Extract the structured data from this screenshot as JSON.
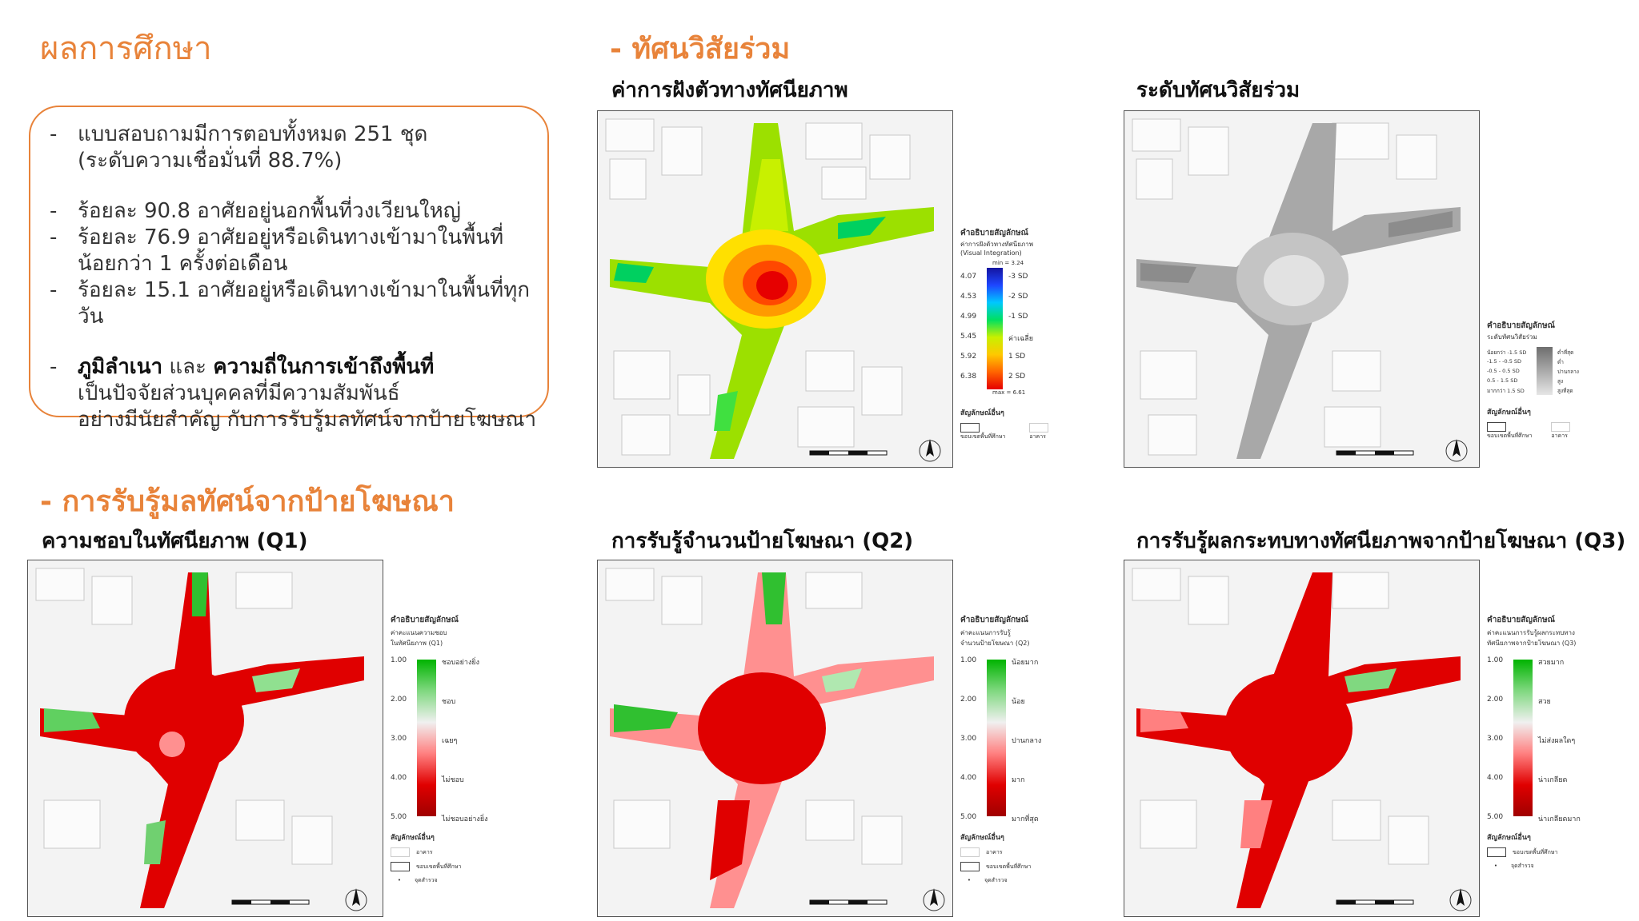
{
  "header": {
    "title": "ผลการศึกษา"
  },
  "summary": {
    "items": [
      {
        "lines": [
          "แบบสอบถามมีการตอบทั้งหมด 251 ชุด",
          "(ระดับความเชื่อมั่นที่ 88.7%)"
        ]
      },
      {
        "lines": [
          "ร้อยละ 90.8 อาศัยอยู่นอกพื้นที่วงเวียนใหญ่"
        ]
      },
      {
        "lines": [
          "ร้อยละ 76.9 อาศัยอยู่หรือเดินทางเข้ามาในพื้นที่",
          "น้อยกว่า 1 ครั้งต่อเดือน"
        ]
      },
      {
        "lines": [
          "ร้อยละ 15.1 อาศัยอยู่หรือเดินทางเข้ามาในพื้นที่ทุกวัน"
        ]
      }
    ],
    "final": {
      "bold1": "ภูมิลำเนา",
      "and": " และ ",
      "bold2": "ความถี่ในการเข้าถึงพื้นที่",
      "line2": "เป็นปัจจัยส่วนบุคคลที่มีความสัมพันธ์",
      "line3": "อย่างมีนัยสำคัญ กับการรับรู้มลทัศน์จากป้ายโฆษณา"
    }
  },
  "sections": {
    "visual": "- ทัศนวิสัยร่วม",
    "perception": "- การรับรู้มลทัศน์จากป้ายโฆษณา"
  },
  "maps": {
    "integration": {
      "title": "ค่าการฝังตัวทางทัศนียภาพ"
    },
    "covisibility": {
      "title": "ระดับทัศนวิสัยร่วม"
    },
    "q1": {
      "title": "ความชอบในทัศนียภาพ (Q1)"
    },
    "q2": {
      "title": "การรับรู้จำนวนป้ายโฆษณา (Q2)"
    },
    "q3": {
      "title": "การรับรู้ผลกระทบทางทัศนียภาพจากป้ายโฆษณา (Q3)"
    }
  },
  "legends": {
    "integration": {
      "head": "คำอธิบายสัญลักษณ์",
      "sub1": "ค่าการฝังตัวทางทัศนียภาพ",
      "sub2": "(Visual Integration)",
      "min": "min = 3.24",
      "max": "max = 6.61",
      "values": [
        "4.07",
        "4.53",
        "4.99",
        "5.45",
        "5.92",
        "6.38"
      ],
      "labels": [
        "-3 SD",
        "-2 SD",
        "-1 SD",
        "ค่าเฉลี่ย",
        "1 SD",
        "2 SD"
      ],
      "others": "สัญลักษณ์อื่นๆ",
      "boundary": "ขอบเขตพื้นที่ศึกษา",
      "building": "อาคาร",
      "colors": [
        "#1414a0",
        "#1e46ff",
        "#00c8ff",
        "#00e060",
        "#c8f000",
        "#ffc800",
        "#ff6400",
        "#e60000"
      ]
    },
    "covisibility": {
      "head": "คำอธิบายสัญลักษณ์",
      "sub1": "ระดับทัศนวิสัยร่วม",
      "ranges": [
        "น้อยกว่า -1.5 SD",
        "-1.5 - -0.5 SD",
        "-0.5 - 0.5 SD",
        "0.5 - 1.5 SD",
        "มากกว่า 1.5 SD"
      ],
      "labels": [
        "ต่ำที่สุด",
        "ต่ำ",
        "ปานกลาง",
        "สูง",
        "สูงที่สุด"
      ],
      "others": "สัญลักษณ์อื่นๆ",
      "boundary": "ขอบเขตพื้นที่ศึกษา",
      "building": "อาคาร",
      "colors": [
        "#6e6e6e",
        "#8c8c8c",
        "#aaaaaa",
        "#c8c8c8",
        "#e6e6e6"
      ]
    },
    "q1": {
      "head": "คำอธิบายสัญลักษณ์",
      "sub1": "ค่าคะแนนความชอบ",
      "sub2": "ในทัศนียภาพ (Q1)",
      "values": [
        "1.00",
        "2.00",
        "3.00",
        "4.00",
        "5.00"
      ],
      "labels": [
        "ชอบอย่างยิ่ง",
        "ชอบ",
        "เฉยๆ",
        "ไม่ชอบ",
        "ไม่ชอบอย่างยิ่ง"
      ]
    },
    "q2": {
      "head": "คำอธิบายสัญลักษณ์",
      "sub1": "ค่าคะแนนการรับรู้",
      "sub2": "จำนวนป้ายโฆษณา (Q2)",
      "values": [
        "1.00",
        "2.00",
        "3.00",
        "4.00",
        "5.00"
      ],
      "labels": [
        "น้อยมาก",
        "น้อย",
        "ปานกลาง",
        "มาก",
        "มากที่สุด"
      ]
    },
    "q3": {
      "head": "คำอธิบายสัญลักษณ์",
      "sub1": "ค่าคะแนนการรับรู้ผลกระทบทาง",
      "sub2": "ทัศนียภาพจากป้ายโฆษณา (Q3)",
      "values": [
        "1.00",
        "2.00",
        "3.00",
        "4.00",
        "5.00"
      ],
      "labels": [
        "สวยมาก",
        "สวย",
        "ไม่ส่งผลใดๆ",
        "น่าเกลียด",
        "น่าเกลียดมาก"
      ]
    },
    "survey_common": {
      "ticks": [
        ".25",
        ".50",
        ".75"
      ],
      "others": "สัญลักษณ์อื่นๆ",
      "building": "อาคาร",
      "boundary": "ขอบเขตพื้นที่ศึกษา",
      "point": "จุดสำรวจ",
      "colors": [
        "#00b400",
        "#80d880",
        "#f0f0f0",
        "#ff8080",
        "#e00000",
        "#a00000"
      ]
    },
    "scale": {
      "ticks": [
        "0",
        "35",
        "70",
        "105",
        "140"
      ],
      "unit": "เมตร"
    }
  }
}
